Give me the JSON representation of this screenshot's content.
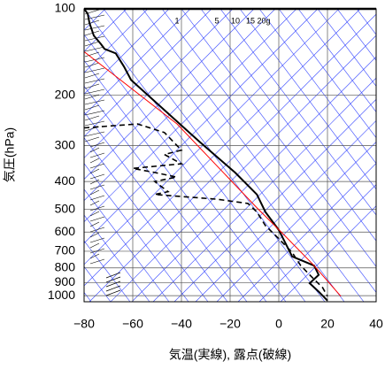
{
  "chart_data": {
    "type": "line",
    "x_label": "気温(実線), 露点(破線)",
    "y_label": "気圧(hPa)",
    "ylog": true,
    "ylim": [
      1050,
      100
    ],
    "yticks": [
      100,
      200,
      300,
      400,
      500,
      600,
      700,
      800,
      900,
      1000
    ],
    "xlim": [
      -80,
      40
    ],
    "xticks": [
      {
        "value": -80,
        "label": "−80"
      },
      {
        "value": -60,
        "label": "−60"
      },
      {
        "value": -40,
        "label": "−40"
      },
      {
        "value": -20,
        "label": "−20"
      },
      0,
      20,
      40
    ],
    "grid": true,
    "annotations": [
      "1",
      "5",
      "10",
      "15",
      "20g"
    ],
    "series": [
      {
        "color": "#000000",
        "dashed": false,
        "width": 2,
        "x": [
          -80,
          -78.5,
          -77.8,
          -76,
          -73,
          -71.6,
          -67,
          -63.6,
          -60.7,
          -32.7,
          -18,
          -9,
          -5.5,
          0,
          5.5,
          14.5,
          16.4,
          12.7,
          16.4,
          20
        ],
        "y": [
          100,
          104,
          112,
          124,
          133,
          138,
          143,
          159,
          177,
          290,
          372,
          444,
          511,
          590,
          730,
          786,
          846,
          905,
          968,
          1040
        ]
      },
      {
        "color": "#000000",
        "dashed": true,
        "width": 1.6,
        "x": [
          -80,
          -58,
          -47,
          -40,
          -47,
          -40,
          -60,
          -51,
          -42,
          -51,
          -45.5,
          -51,
          -25.5,
          -12.7,
          -9,
          -5.5,
          0,
          5.5,
          9,
          14.5,
          18,
          20
        ],
        "y": [
          260,
          252,
          270,
          311,
          322,
          347,
          360,
          372,
          386,
          400,
          434,
          444,
          461,
          477,
          511,
          570,
          633,
          707,
          786,
          877,
          937,
          1005
        ]
      },
      {
        "color": "#ff0000",
        "dashed": false,
        "width": 1,
        "x": [
          -80,
          -41.8,
          -9,
          2,
          14.5,
          25.5
        ],
        "y": [
          141,
          252,
          494,
          612,
          786,
          1005
        ]
      }
    ]
  }
}
